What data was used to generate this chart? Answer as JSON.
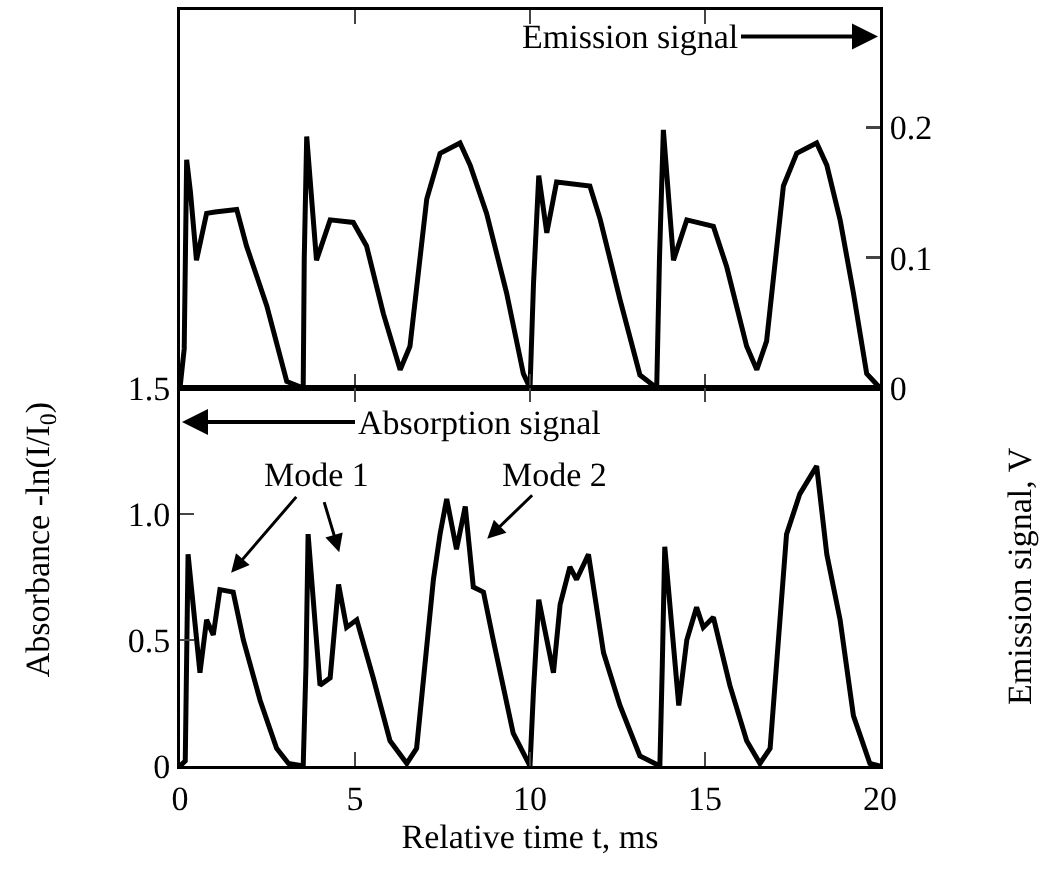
{
  "chart_data": [
    {
      "type": "line",
      "ylabel": "Emission signal, V",
      "xlim": [
        0,
        20
      ],
      "xticks": [
        0,
        5,
        10,
        15,
        20
      ],
      "ylim": [
        0,
        0.29
      ],
      "yticks": [
        0,
        0.1,
        0.2
      ],
      "tick_labels": "y",
      "grid": false,
      "marker": "none",
      "line_style": "solid",
      "annotations": [
        "Emission signal"
      ],
      "series": [
        {
          "color": "#000000",
          "x": [
            0,
            0.12,
            0.19,
            0.3,
            0.47,
            0.76,
            1.0,
            1.62,
            1.9,
            2.48,
            3.05,
            3.52,
            3.55,
            3.62,
            3.9,
            4.29,
            4.95,
            5.33,
            5.81,
            6.29,
            6.57,
            7.05,
            7.43,
            8.0,
            8.29,
            8.76,
            9.33,
            9.81,
            10.0,
            10.1,
            10.25,
            10.48,
            10.76,
            11.71,
            12.0,
            12.57,
            13.14,
            13.62,
            13.7,
            13.81,
            14.1,
            14.48,
            15.24,
            15.62,
            16.19,
            16.48,
            16.76,
            17.24,
            17.62,
            18.19,
            18.48,
            18.86,
            19.24,
            19.62,
            20
          ],
          "values": [
            0,
            0.03,
            0.175,
            0.15,
            0.098,
            0.134,
            0.135,
            0.137,
            0.109,
            0.063,
            0.005,
            0,
            0.1,
            0.193,
            0.098,
            0.129,
            0.127,
            0.109,
            0.057,
            0.014,
            0.032,
            0.145,
            0.18,
            0.188,
            0.171,
            0.134,
            0.073,
            0.011,
            0,
            0.08,
            0.163,
            0.119,
            0.158,
            0.155,
            0.13,
            0.068,
            0.01,
            0,
            0.1,
            0.198,
            0.098,
            0.129,
            0.124,
            0.093,
            0.032,
            0.014,
            0.036,
            0.155,
            0.18,
            0.188,
            0.171,
            0.129,
            0.073,
            0.011,
            0
          ]
        }
      ]
    },
    {
      "type": "line",
      "ylabel": "Absorbance -ln(I/I$_{0}$)",
      "xlabel": "Relative time t, ms",
      "xlim": [
        0,
        20
      ],
      "xticks": [
        0,
        5,
        10,
        15,
        20
      ],
      "ylim": [
        0,
        1.5
      ],
      "yticks": [
        0,
        0.5,
        {
          "value": 1,
          "label": "1.0"
        },
        1.5
      ],
      "grid": false,
      "marker": "none",
      "line_style": "solid",
      "annotations": [
        "Absorption signal",
        "Mode 1",
        "Mode 2"
      ],
      "series": [
        {
          "color": "#000000",
          "x": [
            0,
            0.15,
            0.23,
            0.57,
            0.76,
            0.95,
            1.14,
            1.52,
            1.81,
            2.29,
            2.76,
            3.1,
            3.52,
            3.6,
            3.66,
            4.0,
            4.29,
            4.53,
            4.76,
            5.05,
            5.52,
            6.0,
            6.48,
            6.76,
            7.24,
            7.43,
            7.62,
            7.9,
            8.15,
            8.38,
            8.67,
            8.95,
            9.52,
            10.0,
            10.1,
            10.25,
            10.67,
            10.86,
            11.14,
            11.33,
            11.67,
            12.1,
            12.57,
            13.14,
            13.71,
            13.78,
            13.85,
            14.25,
            14.48,
            14.76,
            14.95,
            15.24,
            15.71,
            16.19,
            16.57,
            16.86,
            17.33,
            17.71,
            18.19,
            18.48,
            18.86,
            19.24,
            19.71,
            20
          ],
          "values": [
            0,
            0.02,
            0.84,
            0.37,
            0.58,
            0.52,
            0.7,
            0.69,
            0.5,
            0.26,
            0.07,
            0.01,
            0,
            0.4,
            0.92,
            0.32,
            0.35,
            0.72,
            0.55,
            0.58,
            0.35,
            0.1,
            0.01,
            0.07,
            0.74,
            0.92,
            1.06,
            0.86,
            1.03,
            0.71,
            0.69,
            0.5,
            0.13,
            0,
            0.3,
            0.66,
            0.37,
            0.64,
            0.79,
            0.74,
            0.84,
            0.45,
            0.24,
            0.04,
            0,
            0.4,
            0.87,
            0.24,
            0.5,
            0.63,
            0.55,
            0.59,
            0.32,
            0.1,
            0.01,
            0.07,
            0.92,
            1.08,
            1.19,
            0.84,
            0.58,
            0.2,
            0.01,
            0
          ]
        }
      ]
    }
  ]
}
